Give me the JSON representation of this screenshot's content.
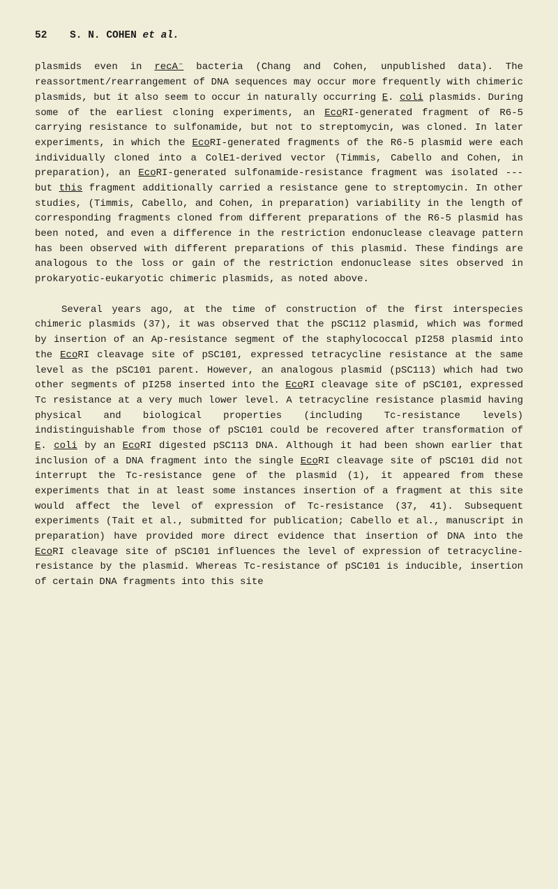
{
  "header": {
    "pageNumber": "52",
    "authors": "S. N. COHEN ",
    "etAl": "et al."
  },
  "p1": {
    "t1": "plasmids even in ",
    "u1": "recA⁻",
    "t2": " bacteria (Chang and Cohen, unpublished data). The reassortment/rearrangement of DNA sequences may occur more frequently with chimeric plasmids, but it also seem to occur in naturally occurring ",
    "u2": "E",
    "t3": ". ",
    "u3": "coli",
    "t4": " plasmids. During some of the earliest cloning experiments, an ",
    "u4": "Eco",
    "t5": "RI-generated fragment of R6-5 carrying resistance to sulfonamide, but not to streptomycin, was cloned. In later experiments, in which the ",
    "u5": "Eco",
    "t6": "RI-generated fragments of the R6-5 plasmid were each individually cloned into a ColE1-derived vector (Timmis, Cabello and Cohen, in preparation), an ",
    "u6": "Eco",
    "t7": "RI-generated sulfonamide-resistance fragment was isolated --- but ",
    "u7": "this",
    "t8": " fragment additionally carried a resistance gene to streptomycin. In other studies, (Timmis, Cabello, and Cohen, in preparation) variability in the length of corresponding fragments cloned from different preparations of the R6-5 plasmid has been noted, and even a difference in the restriction endonuclease cleavage pattern has been observed with different preparations of this plasmid. These findings are analogous to the loss or gain of the restriction endonuclease sites observed in prokaryotic-eukaryotic chimeric plasmids, as noted above."
  },
  "p2": {
    "t1": "Several years ago, at the time of construction of the first interspecies chimeric plasmids (37), it was observed that the pSC112 plasmid, which was formed by insertion of an Ap-resistance segment of the staphylococcal pI258 plasmid into the ",
    "u1": "Eco",
    "t2": "RI cleavage site of pSC101, expressed tetracycline resistance at the same level as the pSC101 parent. However, an analogous plasmid (pSC113) which had two other segments of pI258 inserted into the ",
    "u2": "Eco",
    "t3": "RI cleavage site of pSC101, expressed Tc resistance at a very much lower level. A tetracycline resistance plasmid having physical and biological properties (including Tc-resistance levels) indistinguishable from those of pSC101 could be recovered after transformation of ",
    "u3": "E",
    "t4": ". ",
    "u4": "coli",
    "t5": " by an ",
    "u5": "Eco",
    "t6": "RI digested pSC113 DNA. Although it had been shown earlier that inclusion of a DNA fragment into the single ",
    "u6": "Eco",
    "t7": "RI cleavage site of pSC101 did not interrupt the Tc-resistance gene of the plasmid (1), it appeared from these experiments that in at least some instances insertion of a fragment at this site would affect the level of expression of Tc-resistance (37, 41). Subsequent experiments (Tait et al., submitted for publication; Cabello et al., manuscript in preparation) have provided more direct evidence that insertion of DNA into the ",
    "u7": "Eco",
    "t8": "RI cleavage site of pSC101 influences the level of expression of tetracycline-resistance by the plasmid. Whereas Tc-resistance of pSC101 is inducible, insertion of certain DNA fragments into this site"
  }
}
